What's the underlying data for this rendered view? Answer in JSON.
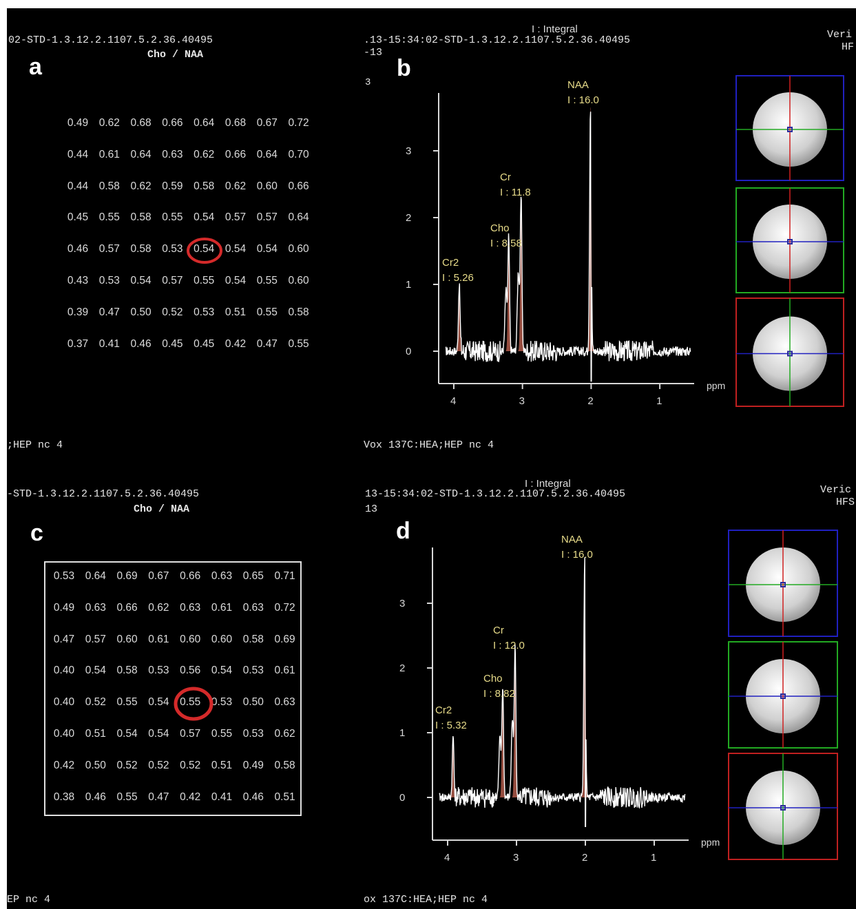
{
  "panel_a": {
    "letter": "a",
    "header_line": "02-STD-1.3.12.2.1107.5.2.36.40495",
    "map_title": "Cho / NAA",
    "footer": ";HEP nc 4",
    "grid": [
      [
        "0.49",
        "0.62",
        "0.68",
        "0.66",
        "0.64",
        "0.68",
        "0.67",
        "0.72"
      ],
      [
        "0.44",
        "0.61",
        "0.64",
        "0.63",
        "0.62",
        "0.66",
        "0.64",
        "0.70"
      ],
      [
        "0.44",
        "0.58",
        "0.62",
        "0.59",
        "0.58",
        "0.62",
        "0.60",
        "0.66"
      ],
      [
        "0.45",
        "0.55",
        "0.58",
        "0.55",
        "0.54",
        "0.57",
        "0.57",
        "0.64"
      ],
      [
        "0.46",
        "0.57",
        "0.58",
        "0.53",
        "0.54",
        "0.54",
        "0.54",
        "0.60"
      ],
      [
        "0.43",
        "0.53",
        "0.54",
        "0.57",
        "0.55",
        "0.54",
        "0.55",
        "0.60"
      ],
      [
        "0.39",
        "0.47",
        "0.50",
        "0.52",
        "0.53",
        "0.51",
        "0.55",
        "0.58"
      ],
      [
        "0.37",
        "0.41",
        "0.46",
        "0.45",
        "0.45",
        "0.42",
        "0.47",
        "0.55"
      ]
    ],
    "highlight": {
      "row": 4,
      "col": 4
    }
  },
  "panel_b": {
    "letter": "b",
    "integral_label": "I : Integral",
    "header_line": ".13-15:34:02-STD-1.3.12.2.1107.5.2.36.40495",
    "header_line2": "-13",
    "corner_num": "3",
    "right_text1": "Veri",
    "right_text2": "HF",
    "footer": "Vox 137C:HEA;HEP nc 4",
    "peaks": [
      {
        "name": "NAA",
        "integral": "I : 16.0",
        "ppm": 2.01,
        "height": 3.7
      },
      {
        "name": "Cr",
        "integral": "I : 11.8",
        "ppm": 3.02,
        "height": 2.3
      },
      {
        "name": "Cho",
        "integral": "I : 8.58",
        "ppm": 3.2,
        "height": 1.7
      },
      {
        "name": "Cr2",
        "integral": "I : 5.26",
        "ppm": 3.92,
        "height": 1.0
      }
    ]
  },
  "panel_c": {
    "letter": "c",
    "header_line": "-STD-1.3.12.2.1107.5.2.36.40495",
    "map_title": "Cho / NAA",
    "footer": "EP nc 4",
    "grid": [
      [
        "0.53",
        "0.64",
        "0.69",
        "0.67",
        "0.66",
        "0.63",
        "0.65",
        "0.71"
      ],
      [
        "0.49",
        "0.63",
        "0.66",
        "0.62",
        "0.63",
        "0.61",
        "0.63",
        "0.72"
      ],
      [
        "0.47",
        "0.57",
        "0.60",
        "0.61",
        "0.60",
        "0.60",
        "0.58",
        "0.69"
      ],
      [
        "0.40",
        "0.54",
        "0.58",
        "0.53",
        "0.56",
        "0.54",
        "0.53",
        "0.61"
      ],
      [
        "0.40",
        "0.52",
        "0.55",
        "0.54",
        "0.55",
        "0.53",
        "0.50",
        "0.63"
      ],
      [
        "0.40",
        "0.51",
        "0.54",
        "0.54",
        "0.57",
        "0.55",
        "0.53",
        "0.62"
      ],
      [
        "0.42",
        "0.50",
        "0.52",
        "0.52",
        "0.52",
        "0.51",
        "0.49",
        "0.58"
      ],
      [
        "0.38",
        "0.46",
        "0.55",
        "0.47",
        "0.42",
        "0.41",
        "0.46",
        "0.51"
      ]
    ],
    "highlight": {
      "row": 4,
      "col": 4
    }
  },
  "panel_d": {
    "letter": "d",
    "integral_label": "I : Integral",
    "header_line": "13-15:34:02-STD-1.3.12.2.1107.5.2.36.40495",
    "header_line2": "13",
    "right_text1": "Veric",
    "right_text2": "HFS",
    "footer": "ox 137C:HEA;HEP nc 4",
    "peaks": [
      {
        "name": "NAA",
        "integral": "I : 16.0",
        "ppm": 2.01,
        "height": 3.7
      },
      {
        "name": "Cr",
        "integral": "I : 12.0",
        "ppm": 3.02,
        "height": 2.3
      },
      {
        "name": "Cho",
        "integral": "I : 8.82",
        "ppm": 3.2,
        "height": 1.7
      },
      {
        "name": "Cr2",
        "integral": "I : 5.32",
        "ppm": 3.92,
        "height": 0.95
      }
    ]
  },
  "spectrum_axes": {
    "y_ticks": [
      "0",
      "1",
      "2",
      "3"
    ],
    "x_ticks": [
      "4",
      "3",
      "2",
      "1"
    ],
    "x_unit": "ppm",
    "x_range_ppm": [
      4.22,
      0.5
    ],
    "y_range": [
      -0.5,
      3.9
    ]
  },
  "colors": {
    "background": "#000000",
    "highlight_circle": "#d42a2a",
    "peak_fill": "#b05a4a",
    "peak_label": "#e8dc8a",
    "locator_box_1": "#2020c0",
    "locator_box_2": "#22aa22",
    "locator_box_3": "#c02020"
  }
}
